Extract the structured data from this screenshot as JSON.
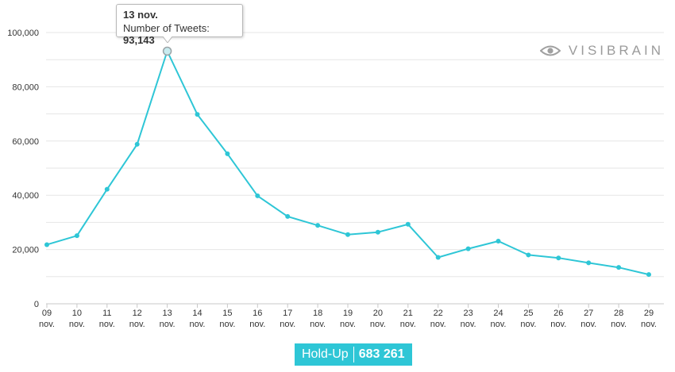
{
  "chart_data": {
    "type": "line",
    "categories": [
      "09 nov.",
      "10 nov.",
      "11 nov.",
      "12 nov.",
      "13 nov.",
      "14 nov.",
      "15 nov.",
      "16 nov.",
      "17 nov.",
      "18 nov.",
      "19 nov.",
      "20 nov.",
      "21 nov.",
      "22 nov.",
      "23 nov.",
      "24 nov.",
      "25 nov.",
      "26 nov.",
      "27 nov.",
      "28 nov.",
      "29 nov."
    ],
    "x_day_labels": [
      "09",
      "10",
      "11",
      "12",
      "13",
      "14",
      "15",
      "16",
      "17",
      "18",
      "19",
      "20",
      "21",
      "22",
      "23",
      "24",
      "25",
      "26",
      "27",
      "28",
      "29"
    ],
    "x_month_label": "nov.",
    "series": [
      {
        "values": [
          21800,
          25100,
          42200,
          58800,
          93143,
          69800,
          55300,
          39800,
          32200,
          28900,
          25500,
          26400,
          29300,
          17100,
          20300,
          23100,
          18000,
          16900,
          15100,
          13400,
          10800
        ]
      }
    ],
    "ylim": [
      0,
      100000
    ],
    "y_ticks": [
      0,
      20000,
      40000,
      60000,
      80000,
      100000
    ],
    "y_tick_labels": [
      "0",
      "20,000",
      "40,000",
      "60,000",
      "80,000",
      "100,000"
    ],
    "grid": true,
    "line_color": "#2ec6d6",
    "highlight_index": 4
  },
  "tooltip": {
    "title": "13 nov.",
    "label": "Number of Tweets: ",
    "value": "93,143"
  },
  "brand": {
    "name": "VISIBRAIN",
    "icon": "eye-icon"
  },
  "footer": {
    "label": "Hold-Up",
    "total": "683 261",
    "color": "#2ec6d6"
  }
}
